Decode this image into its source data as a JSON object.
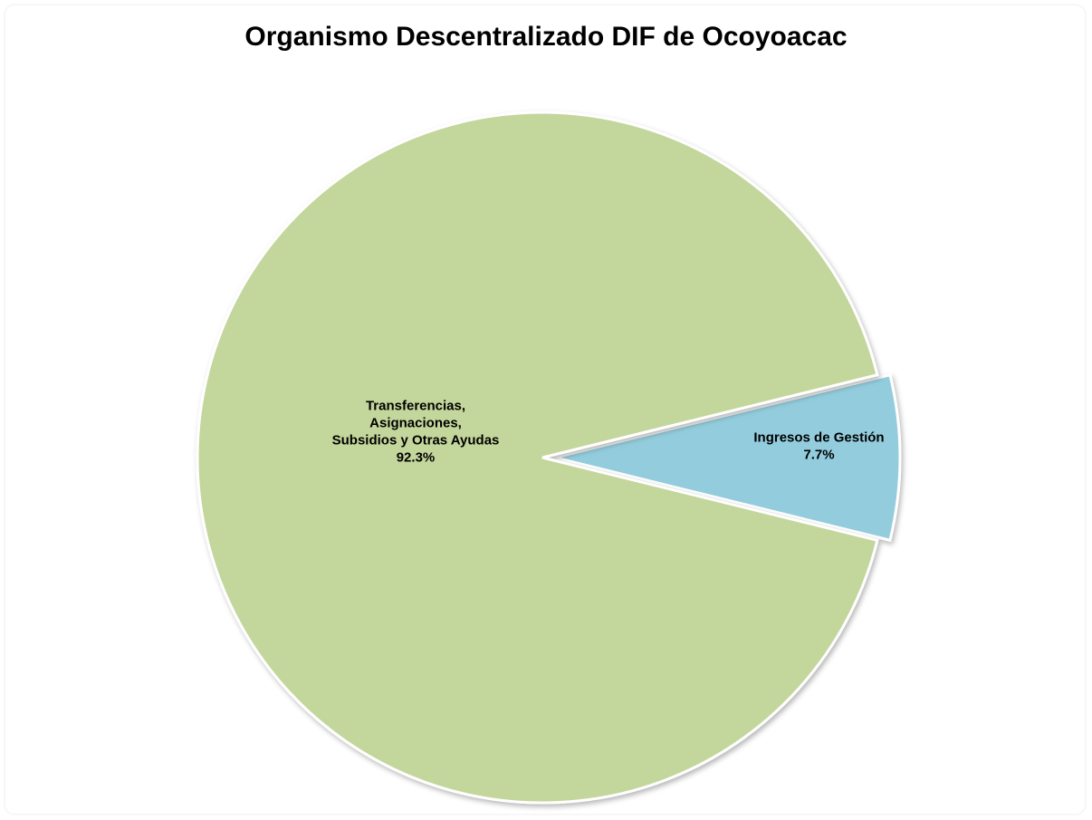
{
  "chart_data": {
    "type": "pie",
    "title": "Organismo Descentralizado DIF de Ocoyoacac",
    "slices": [
      {
        "label_lines": [
          "Transferencias,",
          "Asignaciones,",
          "Subsidios y Otras Ayudas",
          "92.3%"
        ],
        "value": 92.3,
        "color": "#c3d69b",
        "exploded": false
      },
      {
        "label_lines": [
          "Ingresos de Gestión",
          "7.7%"
        ],
        "value": 7.7,
        "color": "#93cddd",
        "exploded": true
      }
    ]
  }
}
